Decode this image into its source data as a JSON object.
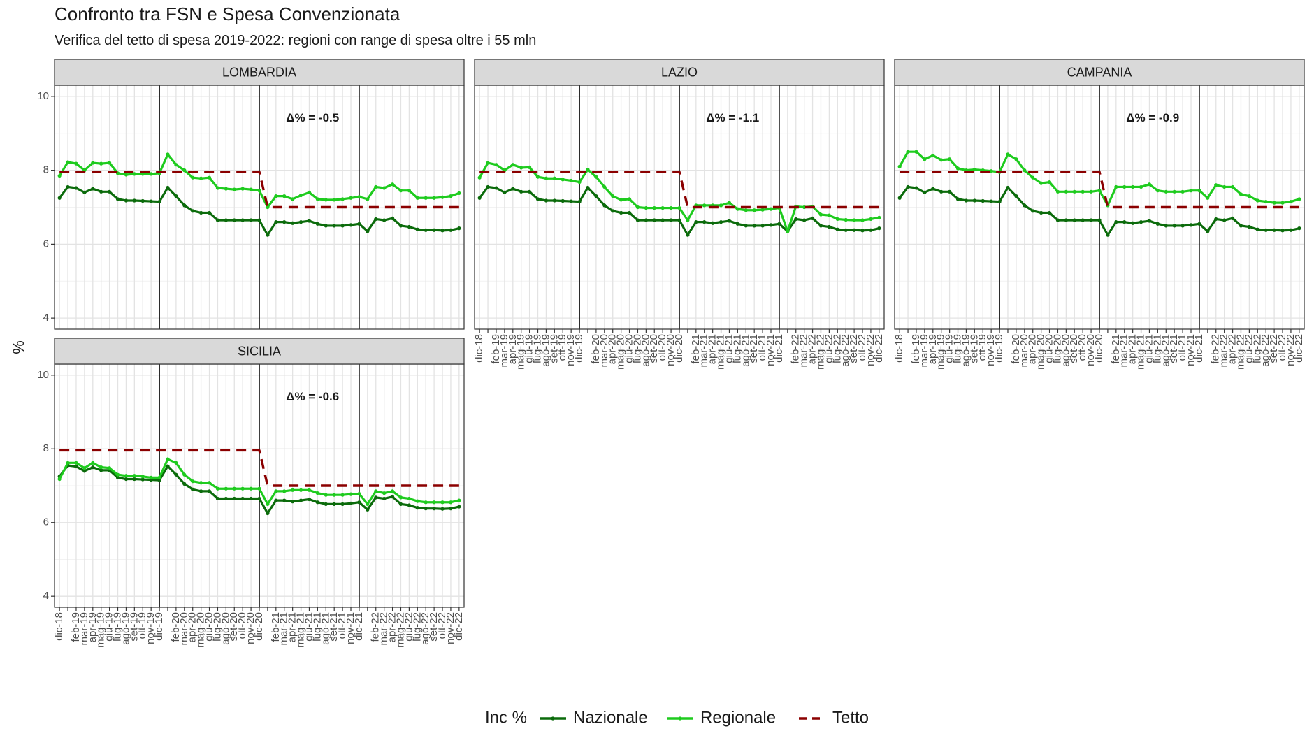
{
  "chart_data": {
    "type": "line",
    "title": "Confronto tra FSN e Spesa Convenzionata",
    "subtitle": "Verifica del tetto di spesa 2019-2022: regioni con range di spesa oltre i 55 mln",
    "ylabel": "%",
    "legend_title": "Inc %",
    "legend": "bottom",
    "grid": true,
    "ylim": [
      3.7,
      10.3
    ],
    "yticks": [
      4,
      6,
      8,
      10
    ],
    "vlines": [
      "dic-19",
      "dic-20",
      "dic-21"
    ],
    "categories": [
      "dic-18",
      null,
      "feb-19",
      "mar-19",
      "apr-19",
      "mag-19",
      "giu-19",
      "lug-19",
      "ago-19",
      "set-19",
      "ott-19",
      "nov-19",
      "dic-19",
      null,
      "feb-20",
      "mar-20",
      "apr-20",
      "mag-20",
      "giu-20",
      "lug-20",
      "ago-20",
      "set-20",
      "ott-20",
      "nov-20",
      "dic-20",
      null,
      "feb-21",
      "mar-21",
      "apr-21",
      "mag-21",
      "giu-21",
      "lug-21",
      "ago-21",
      "set-21",
      "ott-21",
      "nov-21",
      "dic-21",
      null,
      "feb-22",
      "mar-22",
      "apr-22",
      "mag-22",
      "giu-22",
      "lug-22",
      "ago-22",
      "set-22",
      "ott-22",
      "nov-22",
      "dic-22"
    ],
    "panels": [
      {
        "title": "LOMBARDIA",
        "annotation": "Δ% = -0.5",
        "series": [
          {
            "name": "Nazionale",
            "color": "#0b6b0b",
            "values": [
              7.25,
              7.55,
              7.52,
              7.4,
              7.5,
              7.42,
              7.42,
              7.22,
              7.18,
              7.18,
              7.17,
              7.16,
              7.15,
              7.53,
              7.3,
              7.05,
              6.9,
              6.85,
              6.85,
              6.65,
              6.65,
              6.65,
              6.65,
              6.65,
              6.65,
              6.25,
              6.6,
              6.6,
              6.57,
              6.6,
              6.63,
              6.55,
              6.5,
              6.5,
              6.5,
              6.52,
              6.55,
              6.35,
              6.68,
              6.65,
              6.7,
              6.5,
              6.47,
              6.4,
              6.38,
              6.38,
              6.37,
              6.38,
              6.43
            ]
          },
          {
            "name": "Regionale",
            "color": "#1ecb1e",
            "values": [
              7.85,
              8.22,
              8.18,
              8.0,
              8.2,
              8.18,
              8.2,
              7.92,
              7.88,
              7.9,
              7.9,
              7.9,
              7.92,
              8.43,
              8.15,
              8.0,
              7.8,
              7.78,
              7.8,
              7.52,
              7.5,
              7.48,
              7.5,
              7.48,
              7.45,
              7.0,
              7.3,
              7.3,
              7.22,
              7.32,
              7.4,
              7.22,
              7.2,
              7.2,
              7.22,
              7.25,
              7.28,
              7.22,
              7.55,
              7.52,
              7.62,
              7.45,
              7.45,
              7.25,
              7.25,
              7.25,
              7.27,
              7.3,
              7.38
            ]
          },
          {
            "name": "Tetto",
            "color": "#8b0000",
            "dashed": true,
            "values": [
              7.96,
              7.96,
              7.96,
              7.96,
              7.96,
              7.96,
              7.96,
              7.96,
              7.96,
              7.96,
              7.96,
              7.96,
              7.96,
              7.96,
              7.96,
              7.96,
              7.96,
              7.96,
              7.96,
              7.96,
              7.96,
              7.96,
              7.96,
              7.96,
              7.96,
              7,
              7,
              7,
              7,
              7,
              7,
              7,
              7,
              7,
              7,
              7,
              7,
              7,
              7,
              7,
              7,
              7,
              7,
              7,
              7,
              7,
              7,
              7,
              7
            ]
          }
        ]
      },
      {
        "title": "LAZIO",
        "annotation": "Δ% = -1.1",
        "series": [
          {
            "name": "Nazionale",
            "color": "#0b6b0b",
            "values": [
              7.25,
              7.55,
              7.52,
              7.4,
              7.5,
              7.42,
              7.42,
              7.22,
              7.18,
              7.18,
              7.17,
              7.16,
              7.15,
              7.53,
              7.3,
              7.05,
              6.9,
              6.85,
              6.85,
              6.65,
              6.65,
              6.65,
              6.65,
              6.65,
              6.65,
              6.25,
              6.6,
              6.6,
              6.57,
              6.6,
              6.63,
              6.55,
              6.5,
              6.5,
              6.5,
              6.52,
              6.55,
              6.35,
              6.68,
              6.65,
              6.7,
              6.5,
              6.47,
              6.4,
              6.38,
              6.38,
              6.37,
              6.38,
              6.43
            ]
          },
          {
            "name": "Regionale",
            "color": "#1ecb1e",
            "values": [
              7.8,
              8.2,
              8.15,
              8.0,
              8.15,
              8.07,
              8.08,
              7.82,
              7.78,
              7.78,
              7.75,
              7.72,
              7.68,
              8.02,
              7.82,
              7.55,
              7.3,
              7.2,
              7.22,
              7.0,
              6.98,
              6.98,
              6.98,
              6.98,
              6.98,
              6.65,
              7.05,
              7.05,
              7.05,
              7.05,
              7.12,
              6.95,
              6.92,
              6.92,
              6.93,
              6.95,
              6.98,
              6.35,
              7.02,
              7.0,
              7.02,
              6.8,
              6.78,
              6.68,
              6.66,
              6.65,
              6.65,
              6.68,
              6.72
            ]
          },
          {
            "name": "Tetto",
            "color": "#8b0000",
            "dashed": true,
            "values": [
              7.96,
              7.96,
              7.96,
              7.96,
              7.96,
              7.96,
              7.96,
              7.96,
              7.96,
              7.96,
              7.96,
              7.96,
              7.96,
              7.96,
              7.96,
              7.96,
              7.96,
              7.96,
              7.96,
              7.96,
              7.96,
              7.96,
              7.96,
              7.96,
              7.96,
              7,
              7,
              7,
              7,
              7,
              7,
              7,
              7,
              7,
              7,
              7,
              7,
              7,
              7,
              7,
              7,
              7,
              7,
              7,
              7,
              7,
              7,
              7,
              7
            ]
          }
        ]
      },
      {
        "title": "CAMPANIA",
        "annotation": "Δ% = -0.9",
        "series": [
          {
            "name": "Nazionale",
            "color": "#0b6b0b",
            "values": [
              7.25,
              7.55,
              7.52,
              7.4,
              7.5,
              7.42,
              7.42,
              7.22,
              7.18,
              7.18,
              7.17,
              7.16,
              7.15,
              7.53,
              7.3,
              7.05,
              6.9,
              6.85,
              6.85,
              6.65,
              6.65,
              6.65,
              6.65,
              6.65,
              6.65,
              6.25,
              6.6,
              6.6,
              6.57,
              6.6,
              6.63,
              6.55,
              6.5,
              6.5,
              6.5,
              6.52,
              6.55,
              6.35,
              6.68,
              6.65,
              6.7,
              6.5,
              6.47,
              6.4,
              6.38,
              6.38,
              6.37,
              6.38,
              6.43
            ]
          },
          {
            "name": "Regionale",
            "color": "#1ecb1e",
            "values": [
              8.1,
              8.5,
              8.5,
              8.3,
              8.4,
              8.28,
              8.3,
              8.05,
              8.0,
              8.02,
              8.0,
              7.98,
              7.95,
              8.43,
              8.3,
              8.0,
              7.8,
              7.65,
              7.68,
              7.42,
              7.42,
              7.42,
              7.42,
              7.42,
              7.45,
              7.05,
              7.55,
              7.55,
              7.55,
              7.55,
              7.62,
              7.45,
              7.42,
              7.42,
              7.42,
              7.45,
              7.45,
              7.25,
              7.6,
              7.55,
              7.55,
              7.35,
              7.3,
              7.18,
              7.15,
              7.12,
              7.12,
              7.15,
              7.22
            ]
          },
          {
            "name": "Tetto",
            "color": "#8b0000",
            "dashed": true,
            "values": [
              7.96,
              7.96,
              7.96,
              7.96,
              7.96,
              7.96,
              7.96,
              7.96,
              7.96,
              7.96,
              7.96,
              7.96,
              7.96,
              7.96,
              7.96,
              7.96,
              7.96,
              7.96,
              7.96,
              7.96,
              7.96,
              7.96,
              7.96,
              7.96,
              7.96,
              7,
              7,
              7,
              7,
              7,
              7,
              7,
              7,
              7,
              7,
              7,
              7,
              7,
              7,
              7,
              7,
              7,
              7,
              7,
              7,
              7,
              7,
              7,
              7
            ]
          }
        ]
      },
      {
        "title": "SICILIA",
        "annotation": "Δ% = -0.6",
        "series": [
          {
            "name": "Nazionale",
            "color": "#0b6b0b",
            "values": [
              7.25,
              7.55,
              7.52,
              7.4,
              7.5,
              7.42,
              7.42,
              7.22,
              7.18,
              7.18,
              7.17,
              7.16,
              7.15,
              7.53,
              7.3,
              7.05,
              6.9,
              6.85,
              6.85,
              6.65,
              6.65,
              6.65,
              6.65,
              6.65,
              6.65,
              6.25,
              6.6,
              6.6,
              6.57,
              6.6,
              6.63,
              6.55,
              6.5,
              6.5,
              6.5,
              6.52,
              6.55,
              6.35,
              6.68,
              6.65,
              6.7,
              6.5,
              6.47,
              6.4,
              6.38,
              6.38,
              6.37,
              6.38,
              6.43
            ]
          },
          {
            "name": "Regionale",
            "color": "#1ecb1e",
            "values": [
              7.18,
              7.62,
              7.62,
              7.48,
              7.62,
              7.5,
              7.48,
              7.3,
              7.27,
              7.27,
              7.25,
              7.22,
              7.22,
              7.72,
              7.62,
              7.3,
              7.12,
              7.08,
              7.08,
              6.92,
              6.92,
              6.92,
              6.92,
              6.92,
              6.92,
              6.5,
              6.85,
              6.85,
              6.88,
              6.88,
              6.88,
              6.8,
              6.75,
              6.75,
              6.75,
              6.77,
              6.78,
              6.5,
              6.85,
              6.8,
              6.85,
              6.68,
              6.65,
              6.58,
              6.55,
              6.55,
              6.55,
              6.55,
              6.6
            ]
          },
          {
            "name": "Tetto",
            "color": "#8b0000",
            "dashed": true,
            "values": [
              7.96,
              7.96,
              7.96,
              7.96,
              7.96,
              7.96,
              7.96,
              7.96,
              7.96,
              7.96,
              7.96,
              7.96,
              7.96,
              7.96,
              7.96,
              7.96,
              7.96,
              7.96,
              7.96,
              7.96,
              7.96,
              7.96,
              7.96,
              7.96,
              7.96,
              7,
              7,
              7,
              7,
              7,
              7,
              7,
              7,
              7,
              7,
              7,
              7,
              7,
              7,
              7,
              7,
              7,
              7,
              7,
              7,
              7,
              7,
              7,
              7
            ]
          }
        ]
      }
    ]
  }
}
